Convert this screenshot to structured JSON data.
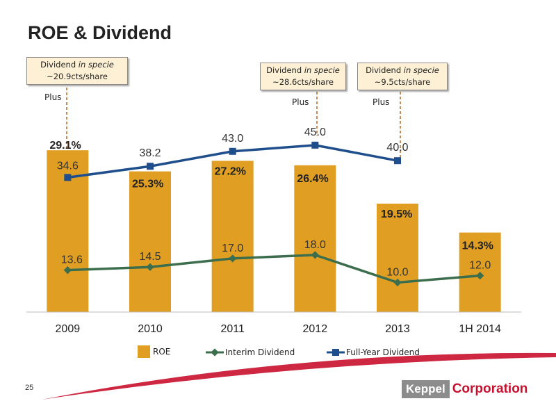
{
  "title": "ROE & Dividend",
  "page_number": "25",
  "logo": {
    "part1": "Keppel",
    "part2": "Corporation"
  },
  "callouts": [
    {
      "text_prefix": "Dividend ",
      "text_italic": "in specie",
      "amount": "~20.9cts/share",
      "plus": "Plus"
    },
    {
      "text_prefix": "Dividend ",
      "text_italic": "in specie",
      "amount": "~28.6cts/share",
      "plus": "Plus"
    },
    {
      "text_prefix": "Dividend ",
      "text_italic": "in specie",
      "amount": "~9.5cts/share",
      "plus": "Plus"
    }
  ],
  "legend": {
    "roe": "ROE",
    "interim": "Interim Dividend",
    "full_year": "Full-Year Dividend"
  },
  "colors": {
    "bar": "#e09f22",
    "interim": "#3c6e4e",
    "full_year": "#1f4e8c",
    "accent_red": "#c8102e"
  },
  "chart_data": {
    "type": "bar",
    "categories": [
      "2009",
      "2010",
      "2011",
      "2012",
      "2013",
      "1H 2014"
    ],
    "series": [
      {
        "name": "ROE",
        "type": "bar",
        "values": [
          29.1,
          25.3,
          27.2,
          26.4,
          19.5,
          14.3
        ],
        "labels": [
          "29.1%",
          "25.3%",
          "27.2%",
          "26.4%",
          "19.5%",
          "14.3%"
        ]
      },
      {
        "name": "Interim Dividend",
        "type": "line",
        "values": [
          13.6,
          14.5,
          17.0,
          18.0,
          10.0,
          12.0
        ],
        "labels": [
          "13.6",
          "14.5",
          "17.0",
          "18.0",
          "10.0",
          "12.0"
        ]
      },
      {
        "name": "Full-Year Dividend",
        "type": "line",
        "values": [
          34.6,
          38.2,
          43.0,
          45.0,
          40.0,
          null
        ],
        "labels": [
          "34.6",
          "38.2",
          "43.0",
          "45.0",
          "40.0",
          ""
        ]
      }
    ],
    "grid": false,
    "legend_position": "bottom"
  }
}
